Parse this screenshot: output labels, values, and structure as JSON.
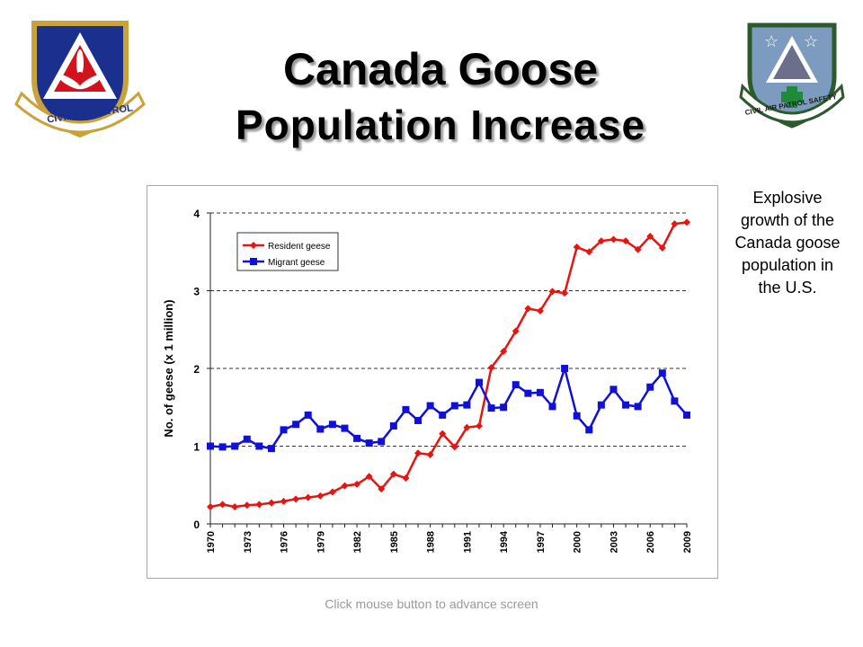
{
  "slide": {
    "title_line1": "Canada Goose",
    "title_line2": "Population Increase",
    "side_note": "Explosive growth of the Canada goose population in the U.S.",
    "footer": "Click mouse button to advance screen",
    "logo_left_text": "CIVIL AIR PATROL",
    "logo_right_text": "CIVIL AIR PATROL SAFETY"
  },
  "chart_data": {
    "type": "line",
    "title": "",
    "xlabel": "",
    "ylabel": "No. of geese (x 1 million)",
    "x": [
      1970,
      1971,
      1972,
      1973,
      1974,
      1975,
      1976,
      1977,
      1978,
      1979,
      1980,
      1981,
      1982,
      1983,
      1984,
      1985,
      1986,
      1987,
      1988,
      1989,
      1990,
      1991,
      1992,
      1993,
      1994,
      1995,
      1996,
      1997,
      1998,
      1999,
      2000,
      2001,
      2002,
      2003,
      2004,
      2005,
      2006,
      2007,
      2008,
      2009
    ],
    "x_tick_labels": [
      "1970",
      "1973",
      "1976",
      "1979",
      "1982",
      "1985",
      "1988",
      "1991",
      "1994",
      "1997",
      "2000",
      "2003",
      "2006",
      "2009"
    ],
    "y_ticks": [
      "0",
      "1",
      "2",
      "3",
      "4"
    ],
    "ylim": [
      0,
      4
    ],
    "grid": "dashed horizontal",
    "legend_position": "top-left",
    "series": [
      {
        "name": "Resident geese",
        "color": "#e8140f",
        "marker": "diamond",
        "values": [
          0.22,
          0.25,
          0.22,
          0.24,
          0.25,
          0.27,
          0.29,
          0.32,
          0.34,
          0.36,
          0.41,
          0.49,
          0.51,
          0.61,
          0.45,
          0.64,
          0.59,
          0.91,
          0.89,
          1.16,
          0.99,
          1.24,
          1.26,
          2.01,
          2.22,
          2.48,
          2.77,
          2.74,
          2.99,
          2.97,
          3.56,
          3.5,
          3.64,
          3.66,
          3.64,
          3.53,
          3.7,
          3.55,
          3.86,
          3.88
        ]
      },
      {
        "name": "Migrant geese",
        "color": "#1010d8",
        "marker": "square",
        "values": [
          1.0,
          0.99,
          1.0,
          1.09,
          1.0,
          0.97,
          1.21,
          1.28,
          1.4,
          1.22,
          1.28,
          1.23,
          1.1,
          1.04,
          1.06,
          1.26,
          1.47,
          1.33,
          1.52,
          1.4,
          1.52,
          1.53,
          1.82,
          1.49,
          1.5,
          1.79,
          1.68,
          1.69,
          1.51,
          2.0,
          1.39,
          1.21,
          1.53,
          1.73,
          1.53,
          1.51,
          1.76,
          1.94,
          1.58,
          1.4
        ]
      }
    ]
  }
}
